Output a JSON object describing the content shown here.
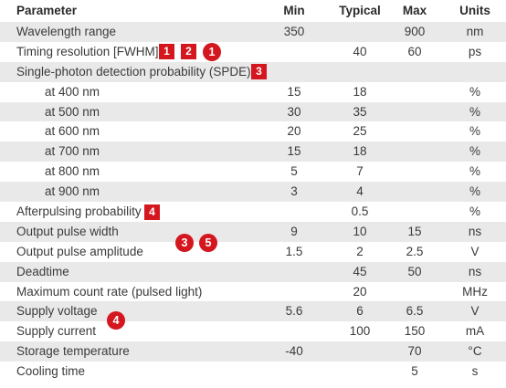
{
  "header": {
    "parameter": "Parameter",
    "min": "Min",
    "typical": "Typical",
    "max": "Max",
    "units": "Units"
  },
  "rows": [
    {
      "parameter": "Wavelength range",
      "min": "350",
      "typical": "",
      "max": "900",
      "units": "nm"
    },
    {
      "parameter": "Timing resolution [FWHM]",
      "min": "",
      "typical": "40",
      "max": "60",
      "units": "ps"
    },
    {
      "parameter": "Single-photon detection probability (SPDE)",
      "min": "",
      "typical": "",
      "max": "",
      "units": ""
    },
    {
      "parameter": "at 400 nm",
      "min": "15",
      "typical": "18",
      "max": "",
      "units": "%"
    },
    {
      "parameter": "at 500 nm",
      "min": "30",
      "typical": "35",
      "max": "",
      "units": "%"
    },
    {
      "parameter": "at 600 nm",
      "min": "20",
      "typical": "25",
      "max": "",
      "units": "%"
    },
    {
      "parameter": "at 700 nm",
      "min": "15",
      "typical": "18",
      "max": "",
      "units": "%"
    },
    {
      "parameter": "at 800 nm",
      "min": "5",
      "typical": "7",
      "max": "",
      "units": "%"
    },
    {
      "parameter": "at 900 nm",
      "min": "3",
      "typical": "4",
      "max": "",
      "units": "%"
    },
    {
      "parameter": "Afterpulsing probability",
      "min": "",
      "typical": "0.5",
      "max": "",
      "units": "%"
    },
    {
      "parameter": "Output pulse width",
      "min": "9",
      "typical": "10",
      "max": "15",
      "units": "ns"
    },
    {
      "parameter": "Output pulse amplitude",
      "min": "1.5",
      "typical": "2",
      "max": "2.5",
      "units": "V"
    },
    {
      "parameter": "Deadtime",
      "min": "",
      "typical": "45",
      "max": "50",
      "units": "ns"
    },
    {
      "parameter": "Maximum count rate (pulsed light)",
      "min": "",
      "typical": "20",
      "max": "",
      "units": "MHz"
    },
    {
      "parameter": "Supply voltage",
      "min": "5.6",
      "typical": "6",
      "max": "6.5",
      "units": "V"
    },
    {
      "parameter": "Supply current",
      "min": "",
      "typical": "100",
      "max": "150",
      "units": "mA"
    },
    {
      "parameter": "Storage temperature",
      "min": "-40",
      "typical": "",
      "max": "70",
      "units": "°C"
    },
    {
      "parameter": "Cooling time",
      "min": "",
      "typical": "",
      "max": "5",
      "units": "s"
    }
  ],
  "notes": {
    "timing_sq1": "1",
    "timing_sq2": "2",
    "timing_circle": "1",
    "spde_sq": "3",
    "afterpulse_sq": "4",
    "pulse_circle_a": "3",
    "pulse_circle_b": "5",
    "supply_circle": "4"
  },
  "colors": {
    "accent": "#d4161f",
    "shade": "#e9e9ea",
    "text": "#3a3a3a"
  }
}
